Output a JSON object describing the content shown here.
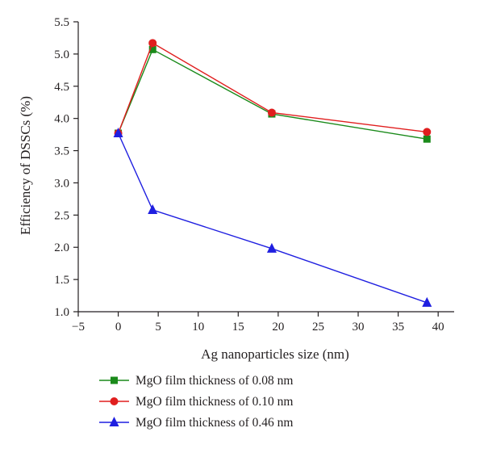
{
  "chart_data": {
    "type": "line",
    "xlabel": "Ag nanoparticles size (nm)",
    "ylabel": "Efficiency of DSSCs (%)",
    "xlim": [
      -5,
      42
    ],
    "ylim": [
      1.0,
      5.5
    ],
    "xticks": [
      -5,
      0,
      5,
      10,
      15,
      20,
      25,
      30,
      35,
      40
    ],
    "xtick_labels": [
      "−5",
      "0",
      "5",
      "10",
      "15",
      "20",
      "25",
      "30",
      "35",
      "40"
    ],
    "yticks": [
      1.0,
      1.5,
      2.0,
      2.5,
      3.0,
      3.5,
      4.0,
      4.5,
      5.0,
      5.5
    ],
    "ytick_labels": [
      "1.0",
      "1.5",
      "2.0",
      "2.5",
      "3.0",
      "3.5",
      "4.0",
      "4.5",
      "5.0",
      "5.5"
    ],
    "grid": false,
    "legend_position": "bottom",
    "series": [
      {
        "name": "MgO film thickness of 0.08 nm",
        "marker": "square",
        "color": "#1a8a1a",
        "x": [
          0,
          4.3,
          19.2,
          38.6
        ],
        "y": [
          3.77,
          5.07,
          4.07,
          3.68
        ]
      },
      {
        "name": "MgO film thickness of 0.10 nm",
        "marker": "circle",
        "color": "#e01e1e",
        "x": [
          0,
          4.3,
          19.2,
          38.6
        ],
        "y": [
          3.77,
          5.17,
          4.09,
          3.79
        ]
      },
      {
        "name": "MgO film thickness of 0.46 nm",
        "marker": "triangle",
        "color": "#1f1fe0",
        "x": [
          0,
          4.3,
          19.2,
          38.6
        ],
        "y": [
          3.77,
          2.58,
          1.98,
          1.14
        ]
      }
    ]
  }
}
